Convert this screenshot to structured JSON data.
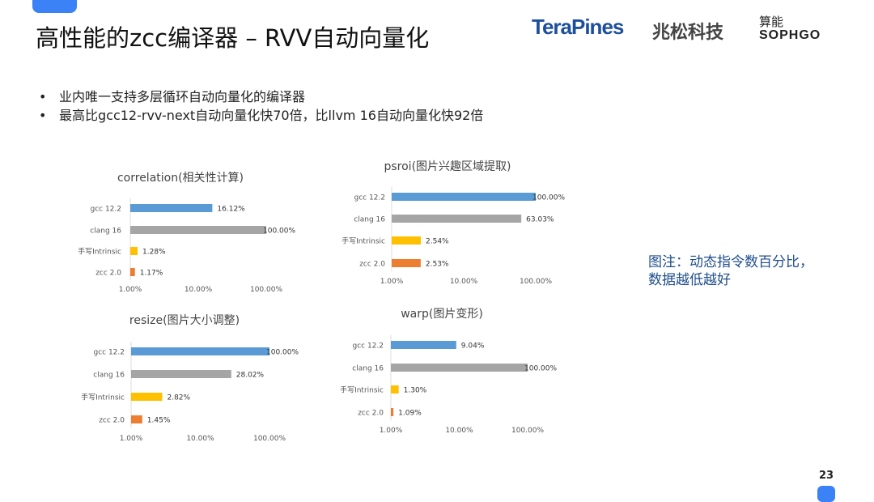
{
  "title": "高性能的zcc编译器 – RVV自动向量化",
  "logos": {
    "terapines": "TeraPines",
    "terapines_cn": "兆松科技",
    "sophgo_cn": "算能",
    "sophgo": "SOPHGO"
  },
  "bullets": [
    "业内唯一支持多层循环自动向量化的编译器",
    "最高比gcc12-rvv-next自动向量化快70倍，比llvm 16自动向量化快92倍"
  ],
  "note": [
    "图注：动态指令数百分比，",
    "数据越低越好"
  ],
  "page_number": "23",
  "colors": {
    "gcc": "#5b9bd5",
    "clang": "#a5a5a5",
    "intrinsic": "#ffc000",
    "zcc": "#ed7d31"
  },
  "chart_data": [
    {
      "type": "bar",
      "orientation": "horizontal",
      "title": "correlation(相关性计算)",
      "categories": [
        "gcc 12.2",
        "clang 16",
        "手写Intrinsic",
        "zcc 2.0"
      ],
      "values": [
        16.12,
        100.0,
        1.28,
        1.17
      ],
      "value_labels": [
        "16.12%",
        "100.00%",
        "1.28%",
        "1.17%"
      ],
      "xscale": "log",
      "xlim": [
        1,
        100
      ],
      "xticks": [
        "1.00%",
        "10.00%",
        "100.00%"
      ],
      "grid": false
    },
    {
      "type": "bar",
      "orientation": "horizontal",
      "title": "psroi(图片兴趣区域提取)",
      "categories": [
        "gcc 12.2",
        "clang 16",
        "手写Intrinsic",
        "zcc 2.0"
      ],
      "values": [
        100.0,
        63.03,
        2.54,
        2.53
      ],
      "value_labels": [
        "100.00%",
        "63.03%",
        "2.54%",
        "2.53%"
      ],
      "xscale": "log",
      "xlim": [
        1,
        100
      ],
      "xticks": [
        "1.00%",
        "10.00%",
        "100.00%"
      ],
      "grid": false
    },
    {
      "type": "bar",
      "orientation": "horizontal",
      "title": "resize(图片大小调整)",
      "categories": [
        "gcc 12.2",
        "clang 16",
        "手写Intrinsic",
        "zcc 2.0"
      ],
      "values": [
        100.0,
        28.02,
        2.82,
        1.45
      ],
      "value_labels": [
        "100.00%",
        "28.02%",
        "2.82%",
        "1.45%"
      ],
      "xscale": "log",
      "xlim": [
        1,
        100
      ],
      "xticks": [
        "1.00%",
        "10.00%",
        "100.00%"
      ],
      "grid": false
    },
    {
      "type": "bar",
      "orientation": "horizontal",
      "title": "warp(图片变形)",
      "categories": [
        "gcc 12.2",
        "clang 16",
        "手写Intrinsic",
        "zcc 2.0"
      ],
      "values": [
        9.04,
        100.0,
        1.3,
        1.09
      ],
      "value_labels": [
        "9.04%",
        "100.00%",
        "1.30%",
        "1.09%"
      ],
      "xscale": "log",
      "xlim": [
        1,
        100
      ],
      "xticks": [
        "1.00%",
        "10.00%",
        "100.00%"
      ],
      "grid": false
    }
  ]
}
